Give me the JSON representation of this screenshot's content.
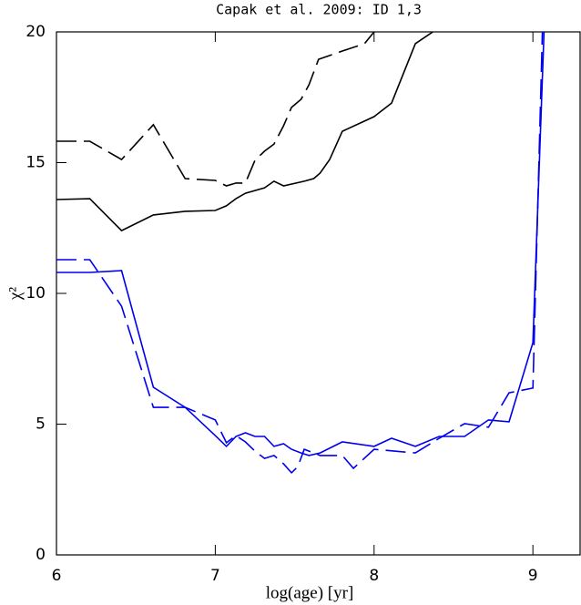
{
  "chart_data": {
    "type": "line",
    "title": "Capak et al. 2009: ID 1,3",
    "xlabel": "log(age) [yr]",
    "ylabel": "χ²",
    "xlim": [
      6,
      9.3
    ],
    "ylim": [
      0,
      20
    ],
    "xticks": [
      6,
      7,
      8,
      9
    ],
    "yticks": [
      0,
      5,
      10,
      15,
      20
    ],
    "series": [
      {
        "color": "#000000",
        "dashed": false,
        "x": [
          6,
          6.21,
          6.41,
          6.61,
          6.81,
          7.0,
          7.07,
          7.13,
          7.19,
          7.31,
          7.37,
          7.43,
          7.56,
          7.62,
          7.66,
          7.72,
          7.8,
          8.0,
          8.11,
          8.26,
          8.37
        ],
        "values": [
          13.59,
          13.62,
          12.4,
          13.0,
          13.14,
          13.17,
          13.35,
          13.62,
          13.83,
          14.04,
          14.29,
          14.11,
          14.29,
          14.39,
          14.6,
          15.12,
          16.2,
          16.76,
          17.28,
          19.55,
          20
        ]
      },
      {
        "color": "#000000",
        "dashed": true,
        "x": [
          6,
          6.21,
          6.41,
          6.61,
          6.81,
          7.0,
          7.07,
          7.13,
          7.19,
          7.25,
          7.31,
          7.37,
          7.43,
          7.48,
          7.54,
          7.59,
          7.65,
          7.8,
          7.94,
          8.0
        ],
        "values": [
          15.82,
          15.82,
          15.12,
          16.45,
          14.39,
          14.32,
          14.11,
          14.22,
          14.22,
          15.09,
          15.44,
          15.71,
          16.41,
          17.11,
          17.42,
          17.98,
          18.95,
          19.27,
          19.55,
          20
        ]
      },
      {
        "color": "#0000ee",
        "dashed": false,
        "x": [
          6,
          6.21,
          6.41,
          6.61,
          6.81,
          7.0,
          7.07,
          7.13,
          7.19,
          7.25,
          7.31,
          7.37,
          7.43,
          7.48,
          7.54,
          7.59,
          7.66,
          7.8,
          8.0,
          8.11,
          8.26,
          8.41,
          8.57,
          8.72,
          8.85,
          9.0,
          9.07
        ],
        "values": [
          10.8,
          10.8,
          10.87,
          6.41,
          5.64,
          4.56,
          4.15,
          4.53,
          4.67,
          4.53,
          4.53,
          4.15,
          4.25,
          4.04,
          3.9,
          3.8,
          3.9,
          4.32,
          4.15,
          4.46,
          4.15,
          4.53,
          4.53,
          5.16,
          5.09,
          8.12,
          20
        ]
      },
      {
        "color": "#0000ee",
        "dashed": true,
        "x": [
          6,
          6.21,
          6.41,
          6.61,
          6.81,
          7.0,
          7.07,
          7.13,
          7.19,
          7.25,
          7.31,
          7.37,
          7.43,
          7.48,
          7.52,
          7.56,
          7.66,
          7.8,
          7.87,
          8.0,
          8.26,
          8.41,
          8.57,
          8.72,
          8.85,
          9.0,
          9.06
        ],
        "values": [
          11.29,
          11.29,
          9.51,
          5.64,
          5.64,
          5.16,
          4.29,
          4.56,
          4.32,
          3.97,
          3.69,
          3.8,
          3.48,
          3.14,
          3.38,
          4.04,
          3.8,
          3.8,
          3.31,
          4.04,
          3.9,
          4.46,
          5.02,
          4.88,
          6.2,
          6.38,
          20
        ]
      }
    ]
  }
}
